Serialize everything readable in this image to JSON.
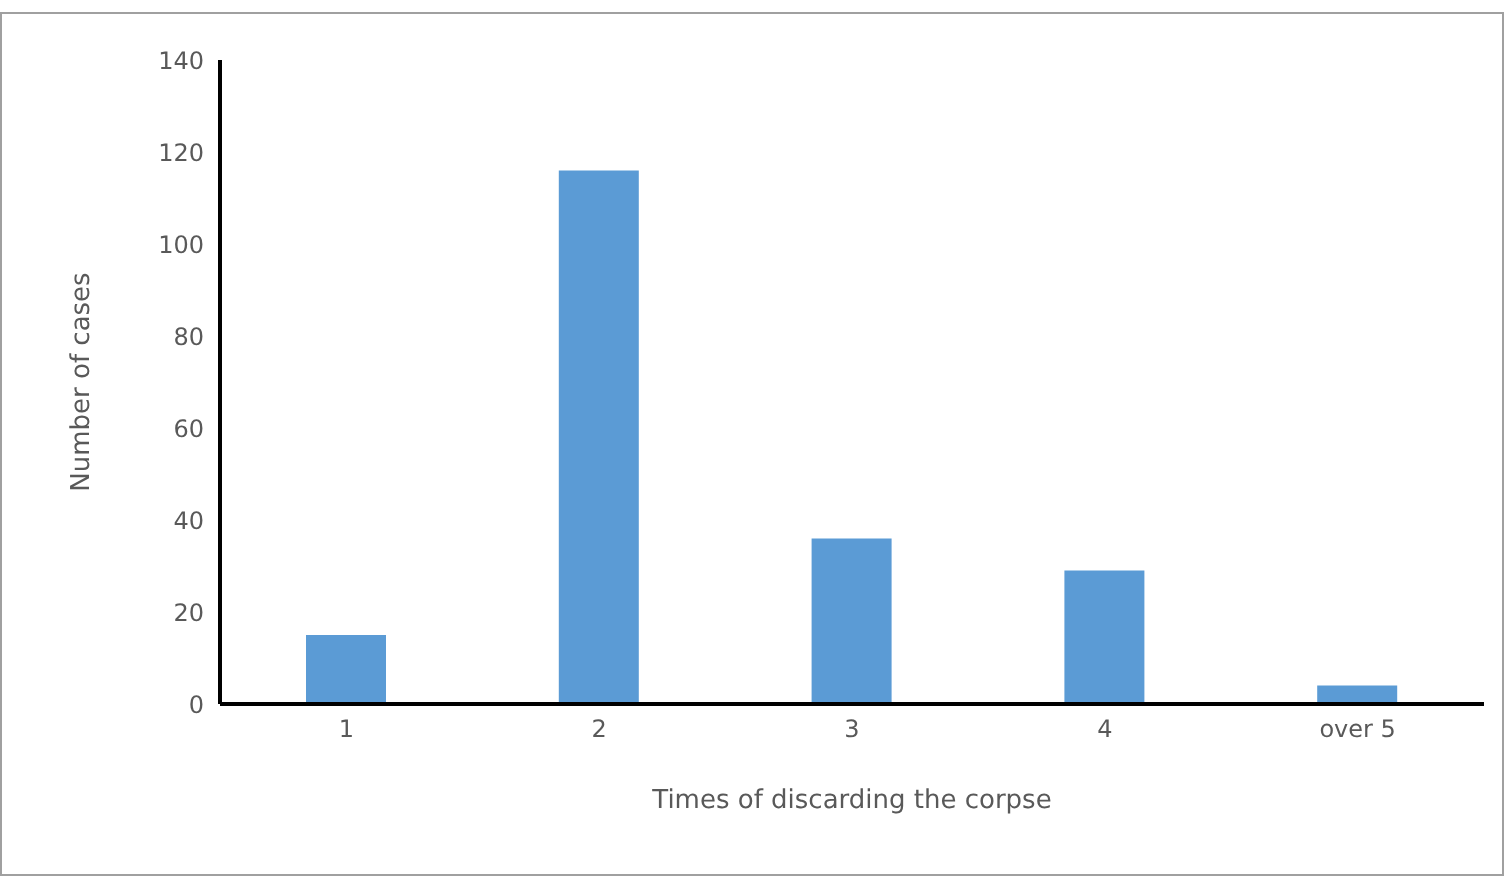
{
  "chart_data": {
    "type": "bar",
    "xlabel": "Times of discarding the corpse",
    "ylabel": "Number  of cases",
    "categories": [
      "1",
      "2",
      "3",
      "4",
      "over 5"
    ],
    "values": [
      15,
      116,
      36,
      29,
      4
    ],
    "color": "#5b9bd5",
    "ylim": [
      0,
      140
    ],
    "yticks": [
      0,
      20,
      40,
      60,
      80,
      100,
      120,
      140
    ],
    "grid": false
  }
}
